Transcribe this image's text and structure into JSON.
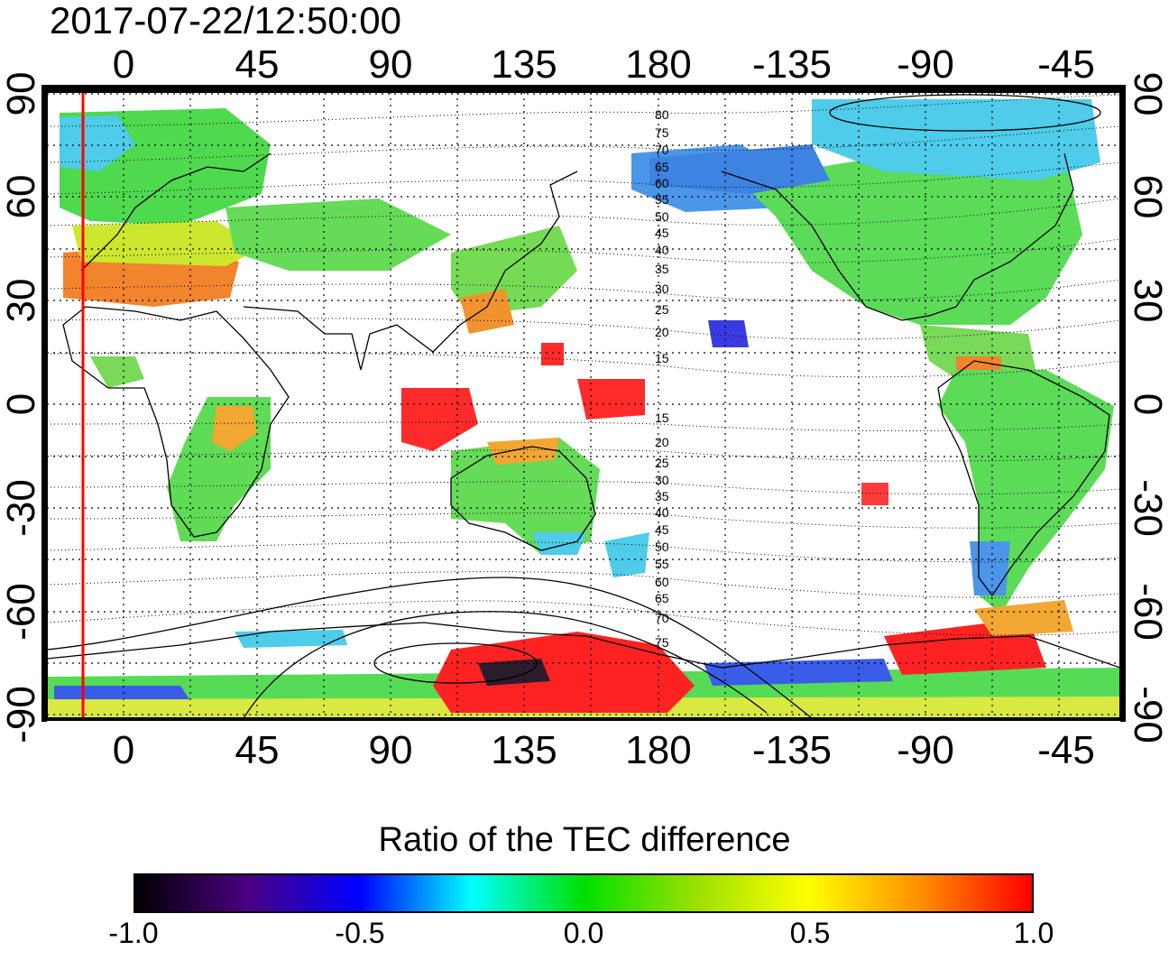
{
  "timestamp": "2017-07-22/12:50:00",
  "map": {
    "top_lon_labels": [
      "0",
      "45",
      "90",
      "135",
      "180",
      "-135",
      "-90",
      "-45"
    ],
    "bottom_lon_labels": [
      "0",
      "45",
      "90",
      "135",
      "180",
      "-135",
      "-90",
      "-45"
    ],
    "left_lat_labels": [
      "90",
      "60",
      "30",
      "0",
      "-30",
      "-60",
      "-90"
    ],
    "right_lat_labels": [
      "90",
      "60",
      "30",
      "0",
      "-30",
      "-60",
      "-90"
    ],
    "north_mlat_labels": [
      "80",
      "75",
      "70",
      "65",
      "60",
      "55",
      "50",
      "45",
      "40",
      "35",
      "30",
      "25",
      "20",
      "15"
    ],
    "south_mlat_labels": [
      "15",
      "20",
      "25",
      "30",
      "35",
      "40",
      "45",
      "50",
      "55",
      "60",
      "65",
      "70",
      "75"
    ],
    "marker_longitude": -12,
    "marker_color": "#ff0000",
    "field": "TEC difference ratio, -1.0 to 1.0"
  },
  "colorbar": {
    "title": "Ratio of the TEC difference",
    "min": -1.0,
    "max": 1.0,
    "tick_labels": [
      "-1.0",
      "-0.5",
      "0.0",
      "0.5",
      "1.0"
    ],
    "colors": [
      "#000000",
      "#4b0082",
      "#0000ff",
      "#00ffff",
      "#00e000",
      "#9be000",
      "#ffff00",
      "#ff9000",
      "#ff0000"
    ]
  }
}
